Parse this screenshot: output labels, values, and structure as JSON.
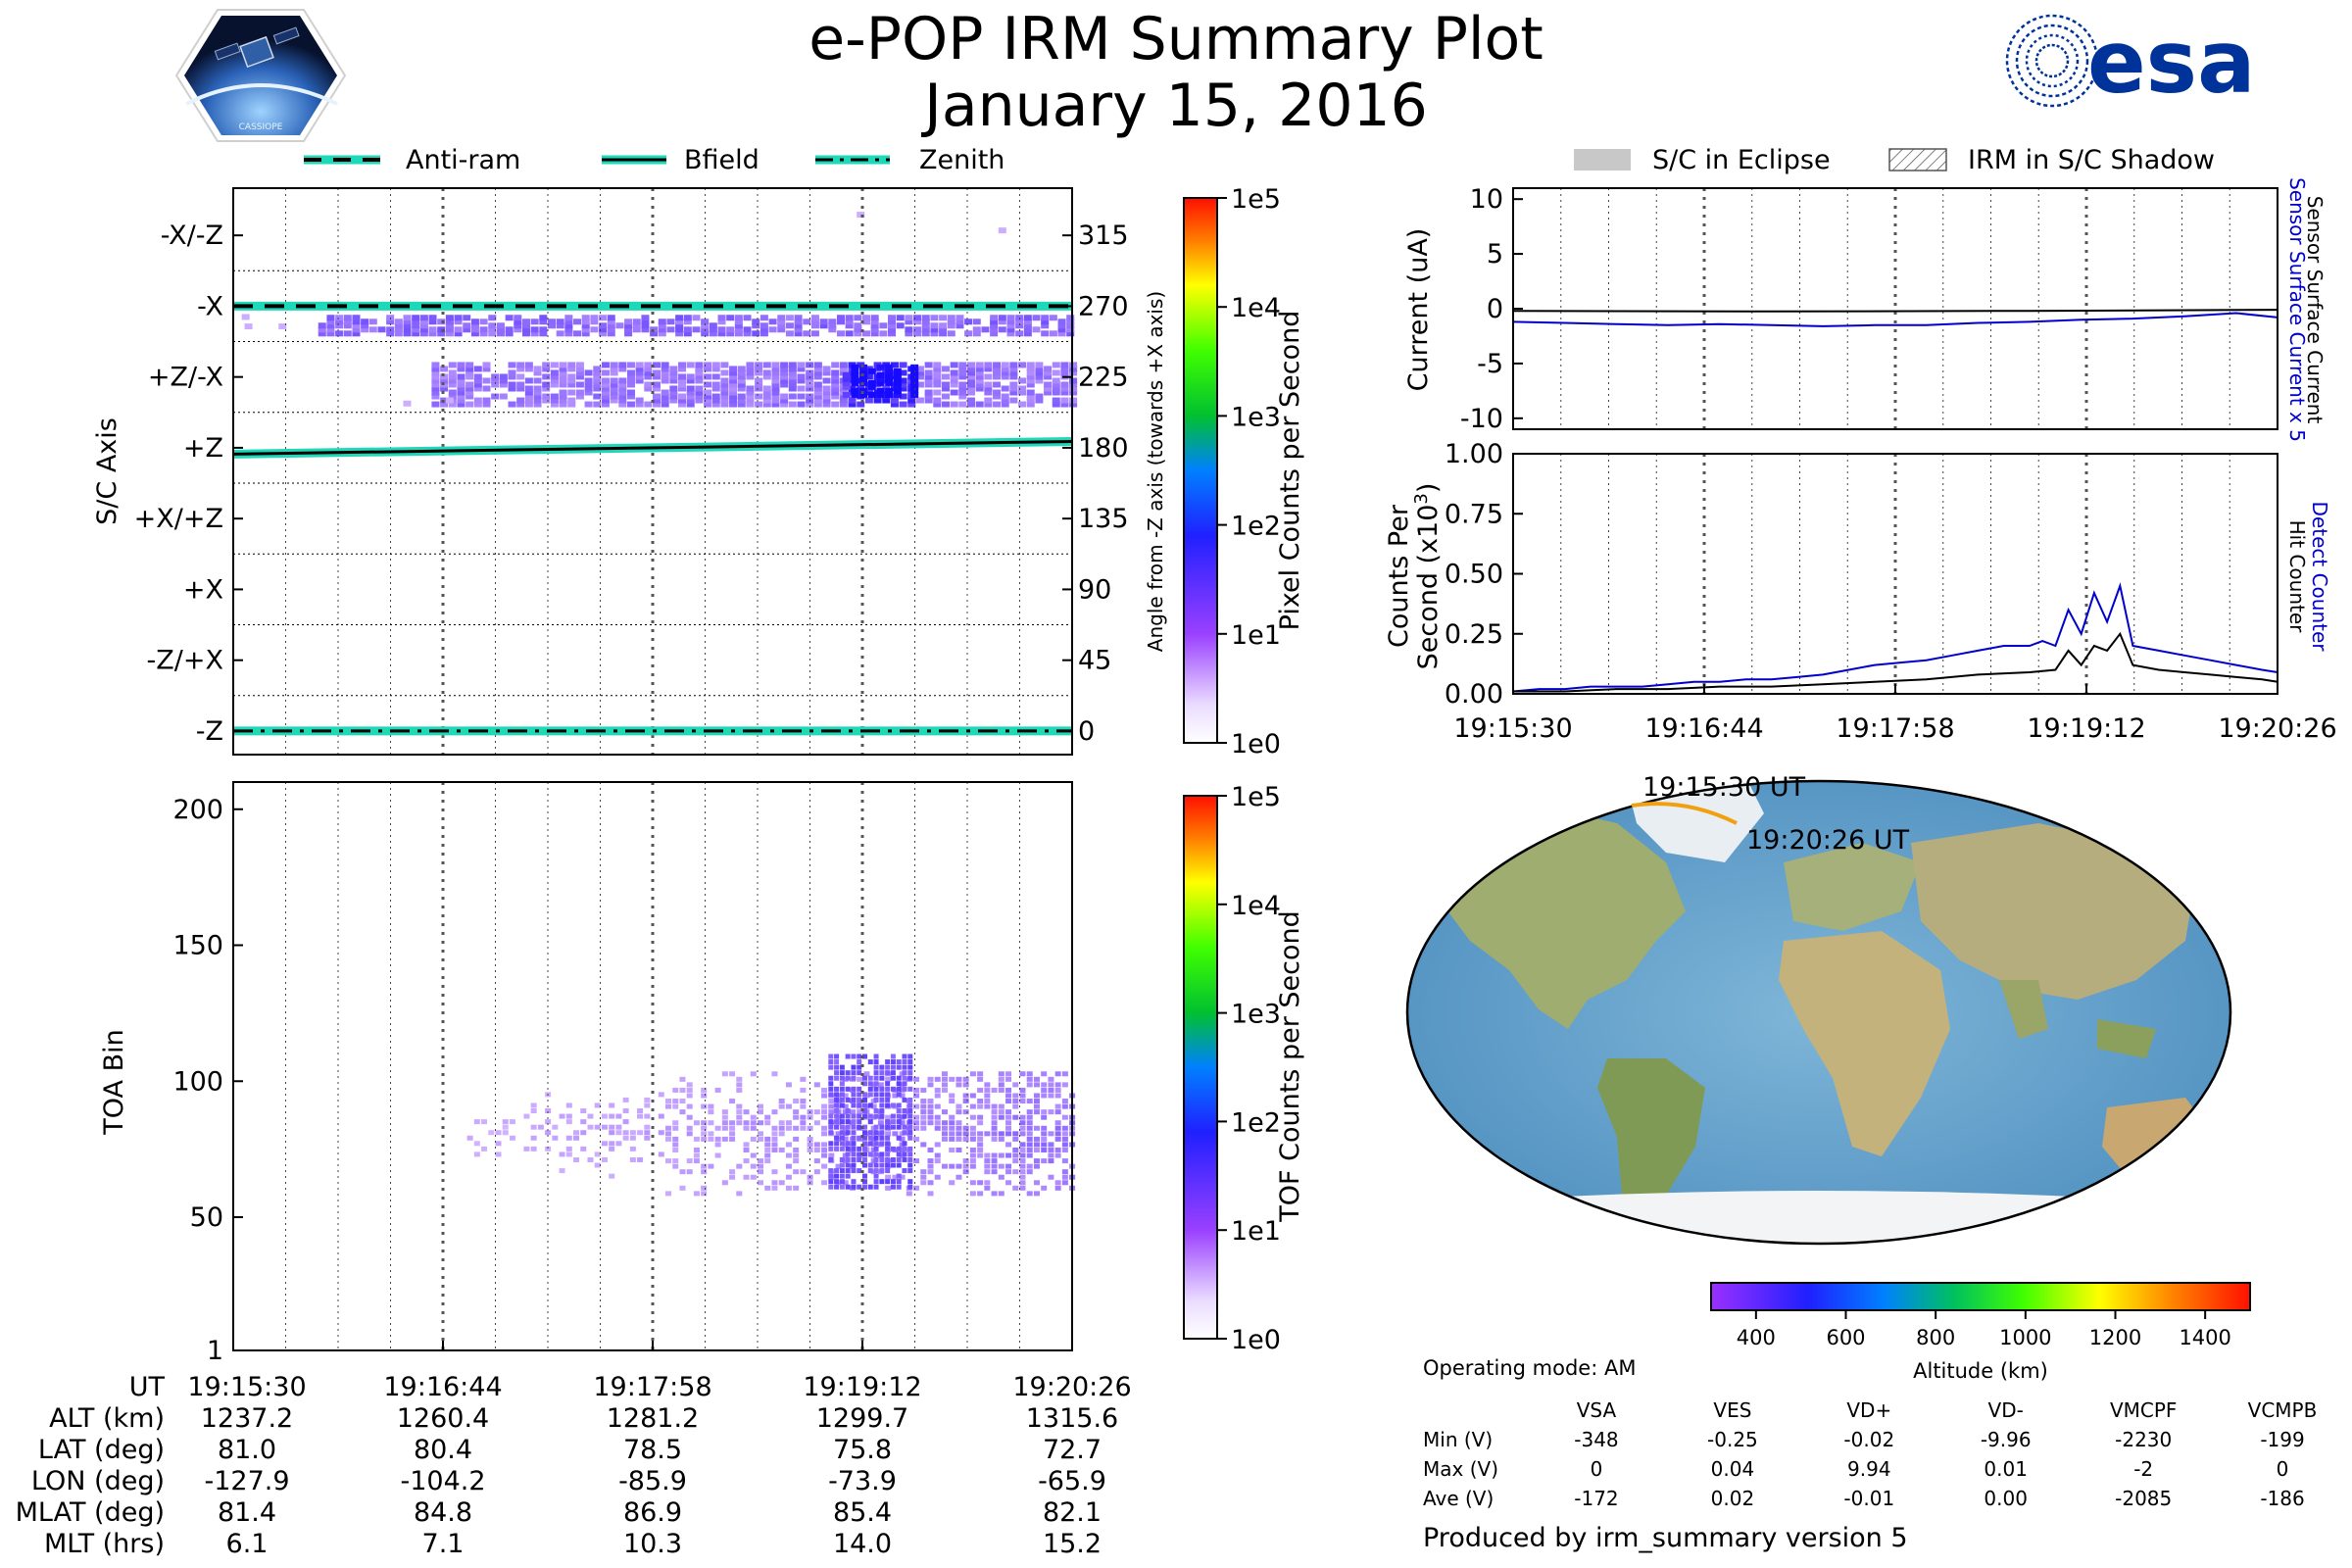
{
  "header": {
    "title_line1": "e-POP IRM Summary Plot",
    "title_line2": "January 15, 2016",
    "left_logo_text": "CASSIOPE",
    "right_logo_text": "esa"
  },
  "legend_left": [
    {
      "label": "Anti-ram",
      "style": "dashed"
    },
    {
      "label": "Bfield",
      "style": "solid"
    },
    {
      "label": "Zenith",
      "style": "dashdot"
    }
  ],
  "legend_right": [
    {
      "label": "S/C in Eclipse",
      "style": "gray-fill"
    },
    {
      "label": "IRM in S/C Shadow",
      "style": "hatched"
    }
  ],
  "chart_data": [
    {
      "id": "pixel_angle",
      "type": "heatmap",
      "ylabel": "S/C Axis",
      "right_ylabel": "Angle from -Z axis (towards +X axis)",
      "axis_labels": [
        "-X/-Z",
        "-X",
        "+Z/-X",
        "+Z",
        "+X/+Z",
        "+X",
        "-Z/+X",
        "-Z"
      ],
      "axis_angles": [
        315,
        270,
        225,
        180,
        135,
        90,
        45,
        0
      ],
      "ylim": [
        -15,
        345
      ],
      "xlim_sec": [
        0,
        296
      ],
      "colorbar": {
        "label": "Pixel Counts per Second",
        "ticks": [
          "1e5",
          "1e4",
          "1e3",
          "1e2",
          "1e1",
          "1e0"
        ]
      },
      "lines": [
        {
          "name": "Anti-ram",
          "y_start": 270,
          "y_end": 270
        },
        {
          "name": "Bfield",
          "y_start": 176,
          "y_end": 184
        },
        {
          "name": "Zenith",
          "y_start": 0,
          "y_end": 0
        }
      ],
      "bands": [
        {
          "y0": 252,
          "y1": 264,
          "x0": 30,
          "x1": 296,
          "level": 0.3
        },
        {
          "y0": 207,
          "y1": 233,
          "x0": 70,
          "x1": 296,
          "level": 0.25
        },
        {
          "y0": 213,
          "y1": 233,
          "x0": 215,
          "x1": 240,
          "level": 0.5
        }
      ]
    },
    {
      "id": "toa",
      "type": "heatmap",
      "ylabel": "TOA Bin",
      "yticks": [
        1,
        50,
        100,
        150,
        200
      ],
      "ylim": [
        1,
        210
      ],
      "colorbar": {
        "label": "TOF Counts per Second",
        "ticks": [
          "1e5",
          "1e4",
          "1e3",
          "1e2",
          "1e1",
          "1e0"
        ]
      },
      "cluster": {
        "x0": 80,
        "x1": 296,
        "y_center": 80,
        "y_spread": 10,
        "peak_x0": 210,
        "peak_x1": 240,
        "peak_y0": 60,
        "peak_y1": 110
      }
    },
    {
      "id": "current",
      "type": "line",
      "ylabel": "Current (uA)",
      "yticks": [
        10,
        5,
        0,
        -5,
        -10
      ],
      "ylim": [
        -11,
        11
      ],
      "right_label_blue": "Sensor Surface Current x 5",
      "right_label_black": "Sensor Surface Current",
      "series": [
        {
          "name": "Sensor Surface Current x 5",
          "color": "#0000cc",
          "x": [
            0,
            20,
            40,
            60,
            80,
            100,
            120,
            140,
            160,
            180,
            200,
            220,
            240,
            260,
            280,
            296
          ],
          "y": [
            -1.2,
            -1.3,
            -1.4,
            -1.5,
            -1.4,
            -1.5,
            -1.6,
            -1.5,
            -1.5,
            -1.3,
            -1.2,
            -1.0,
            -0.9,
            -0.7,
            -0.4,
            -0.8
          ]
        },
        {
          "name": "Sensor Surface Current",
          "color": "#000000",
          "x": [
            0,
            100,
            200,
            296
          ],
          "y": [
            -0.2,
            -0.25,
            -0.2,
            -0.1
          ]
        }
      ]
    },
    {
      "id": "counts",
      "type": "line",
      "ylabel_line1": "Counts Per",
      "ylabel_line2": "Second (x10",
      "ylabel_sup": "3",
      "ylabel_close": ")",
      "yticks": [
        "1.00",
        "0.75",
        "0.50",
        "0.25",
        "0.00"
      ],
      "ylim": [
        0,
        1.0
      ],
      "right_label_blue": "Detect Counter",
      "right_label_black": "Hit Counter",
      "series": [
        {
          "name": "Detect Counter",
          "color": "#0000cc",
          "x": [
            0,
            10,
            20,
            30,
            40,
            50,
            60,
            70,
            80,
            90,
            100,
            110,
            120,
            130,
            140,
            150,
            160,
            170,
            180,
            190,
            200,
            205,
            210,
            215,
            220,
            225,
            230,
            235,
            240,
            250,
            260,
            270,
            280,
            290,
            296
          ],
          "y": [
            0.01,
            0.02,
            0.02,
            0.03,
            0.03,
            0.03,
            0.04,
            0.05,
            0.05,
            0.06,
            0.06,
            0.07,
            0.08,
            0.1,
            0.12,
            0.13,
            0.14,
            0.16,
            0.18,
            0.2,
            0.2,
            0.22,
            0.2,
            0.35,
            0.25,
            0.42,
            0.3,
            0.45,
            0.2,
            0.18,
            0.16,
            0.14,
            0.12,
            0.1,
            0.09
          ]
        },
        {
          "name": "Hit Counter",
          "color": "#000000",
          "x": [
            0,
            20,
            40,
            60,
            80,
            100,
            120,
            140,
            160,
            180,
            200,
            210,
            215,
            220,
            225,
            230,
            235,
            240,
            250,
            260,
            270,
            280,
            290,
            296
          ],
          "y": [
            0.01,
            0.01,
            0.02,
            0.02,
            0.03,
            0.03,
            0.04,
            0.05,
            0.06,
            0.08,
            0.09,
            0.1,
            0.18,
            0.12,
            0.2,
            0.18,
            0.25,
            0.12,
            0.1,
            0.09,
            0.08,
            0.07,
            0.06,
            0.05
          ]
        }
      ]
    }
  ],
  "time_ticks": [
    "19:15:30",
    "19:16:44",
    "19:17:58",
    "19:19:12",
    "19:20:26"
  ],
  "orbit_table": {
    "rows": [
      {
        "label": "UT",
        "values": [
          "19:15:30",
          "19:16:44",
          "19:17:58",
          "19:19:12",
          "19:20:26"
        ]
      },
      {
        "label": "ALT (km)",
        "values": [
          "1237.2",
          "1260.4",
          "1281.2",
          "1299.7",
          "1315.6"
        ]
      },
      {
        "label": "LAT (deg)",
        "values": [
          "81.0",
          "80.4",
          "78.5",
          "75.8",
          "72.7"
        ]
      },
      {
        "label": "LON (deg)",
        "values": [
          "-127.9",
          "-104.2",
          "-85.9",
          "-73.9",
          "-65.9"
        ]
      },
      {
        "label": "MLAT (deg)",
        "values": [
          "81.4",
          "84.8",
          "86.9",
          "85.4",
          "82.1"
        ]
      },
      {
        "label": "MLT (hrs)",
        "values": [
          "6.1",
          "7.1",
          "10.3",
          "14.0",
          "15.2"
        ]
      }
    ]
  },
  "map": {
    "start_label": "19:15:30 UT",
    "end_label": "19:20:26 UT",
    "altitude_colorbar": {
      "label": "Altitude (km)",
      "ticks": [
        "400",
        "600",
        "800",
        "1000",
        "1200",
        "1400"
      ]
    }
  },
  "operating_mode": "Operating mode: AM",
  "voltage_table": {
    "headers": [
      "VSA",
      "VES",
      "VD+",
      "VD-",
      "VMCPF",
      "VCMPB"
    ],
    "rows": [
      {
        "label": "Min (V)",
        "values": [
          "-348",
          "-0.25",
          "-0.02",
          "-9.96",
          "-2230",
          "-199"
        ]
      },
      {
        "label": "Max (V)",
        "values": [
          "0",
          "0.04",
          "9.94",
          "0.01",
          "-2",
          "0"
        ]
      },
      {
        "label": "Ave (V)",
        "values": [
          "-172",
          "0.02",
          "-0.01",
          "0.00",
          "-2085",
          "-186"
        ]
      }
    ]
  },
  "footer": "Produced by irm_summary version 5",
  "colors": {
    "accent_teal": "#1ed8b8",
    "eclipse_gray": "#c8c8c8",
    "esa_blue": "#003399",
    "blue_series": "#0000cc"
  }
}
